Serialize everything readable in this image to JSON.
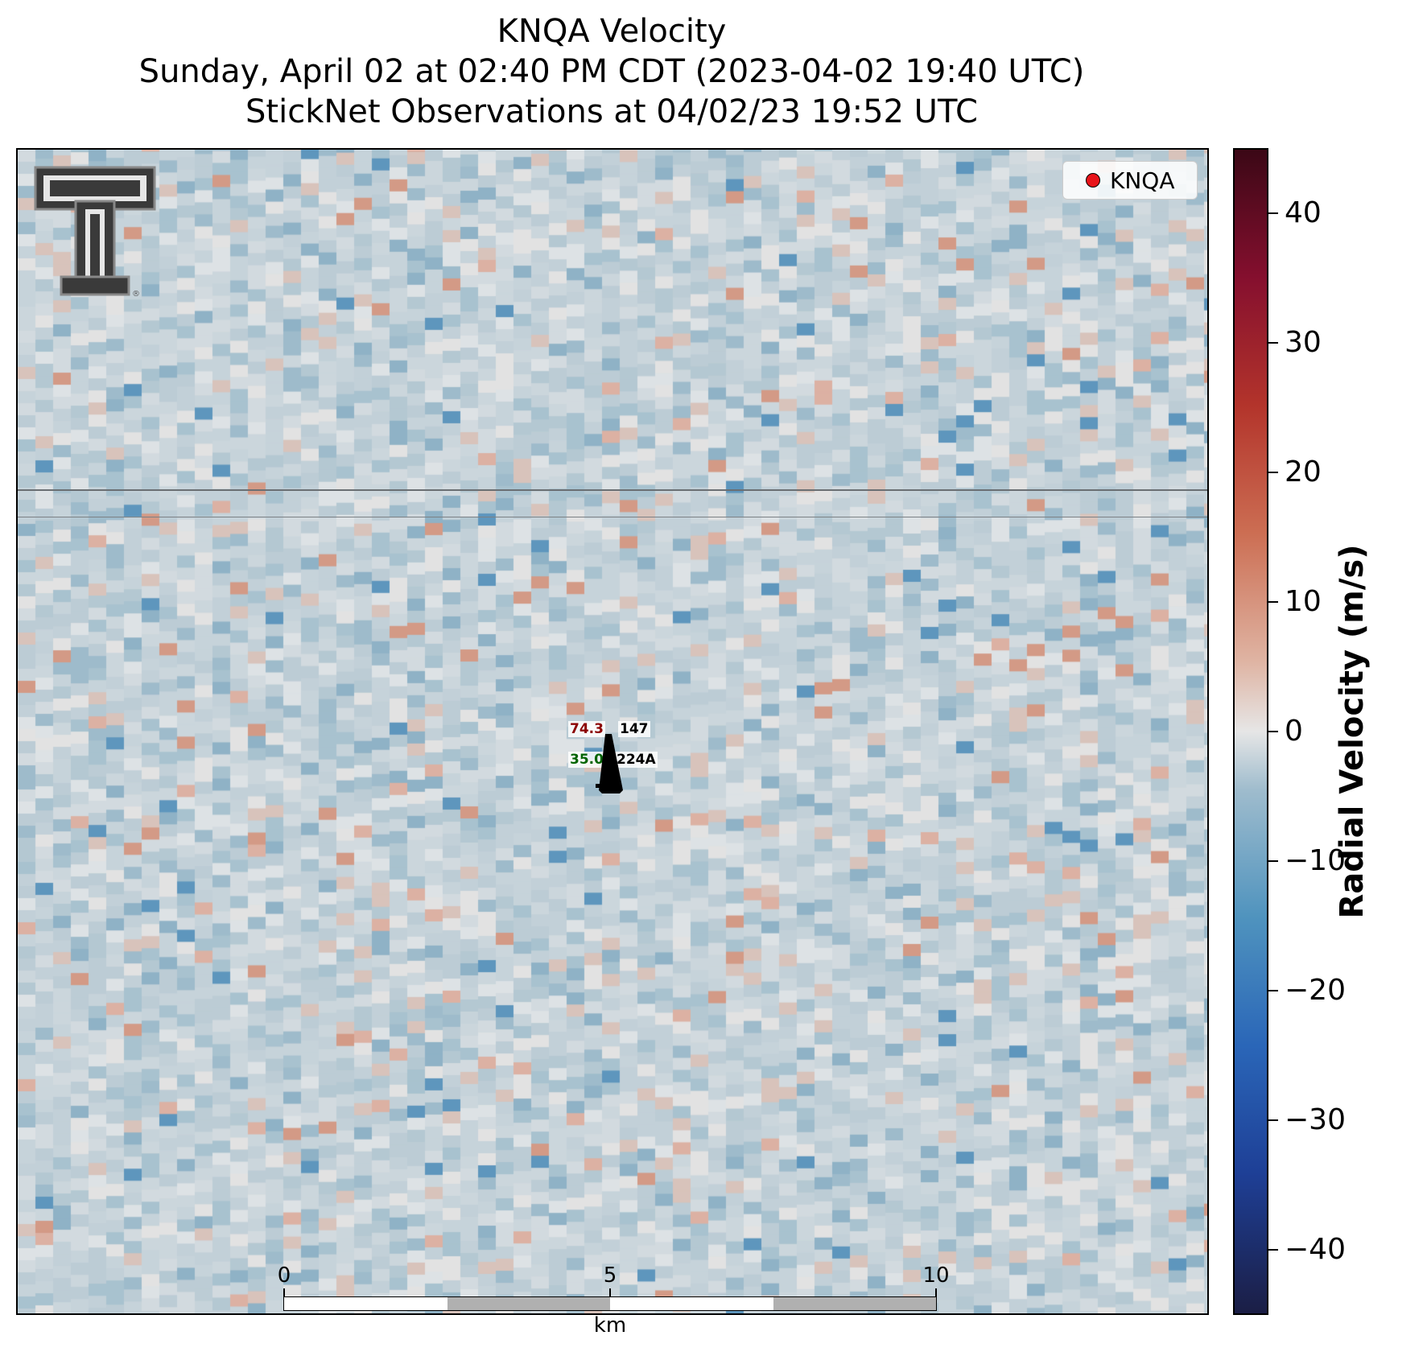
{
  "title": {
    "line1": "KNQA Velocity",
    "line2": "Sunday, April 02 at 02:40 PM CDT (2023-04-02 19:40 UTC)",
    "line3": "StickNet Observations at 04/02/23 19:52 UTC"
  },
  "legend": {
    "label": "KNQA",
    "marker_color": "#e8141a"
  },
  "colorbar": {
    "title": "Radial Velocity (m/s)",
    "range": [
      -45,
      45
    ],
    "ticks": [
      "40",
      "30",
      "20",
      "10",
      "0",
      "−10",
      "−20",
      "−30",
      "−40"
    ],
    "tick_values": [
      40,
      30,
      20,
      10,
      0,
      -10,
      -20,
      -30,
      -40
    ]
  },
  "stations": [
    {
      "temp": "74.3",
      "dewpoint": "35.0",
      "top_id": "147",
      "bottom_id": "224A",
      "temp_color": "#8b0000",
      "dew_color": "#006400"
    }
  ],
  "scalebar": {
    "labels": [
      "0",
      "5",
      "10"
    ],
    "unit": "km"
  },
  "logo": {
    "name": "texas-tech-double-t-logo"
  }
}
